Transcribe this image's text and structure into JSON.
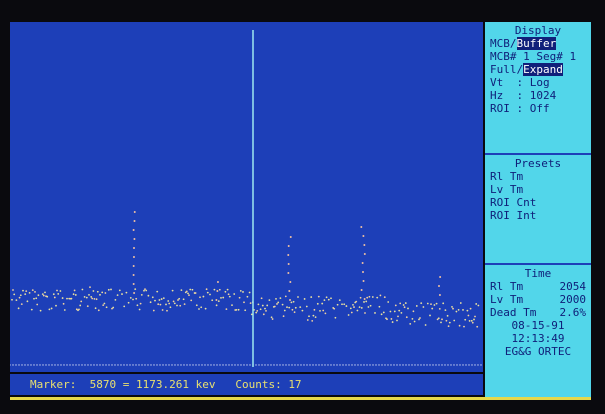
{
  "display": {
    "title": "Display",
    "mode": [
      "MCB/",
      "Buffer"
    ],
    "seg": "MCB# 1 Seg# 1",
    "view": [
      "Full/",
      "Expand"
    ],
    "vt": "Vt  : Log",
    "hz": "Hz  : 1024",
    "roi": "ROI : Off"
  },
  "presets": {
    "title": "Presets",
    "items": [
      "Rl Tm",
      "Lv Tm",
      "ROI Cnt",
      "ROI Int"
    ]
  },
  "time": {
    "title": "Time",
    "rows": [
      [
        "Rl Tm",
        "2054"
      ],
      [
        "Lv Tm",
        "2000"
      ],
      [
        "Dead Tm",
        "2.6%"
      ]
    ],
    "date": "08-15-91",
    "clock": "12:13:49",
    "brand": "EG&G ORTEC"
  },
  "status": {
    "marker_label": "Marker:",
    "marker": "5870 = 1173.261 kev",
    "counts_label": "Counts:",
    "counts": "17"
  }
}
